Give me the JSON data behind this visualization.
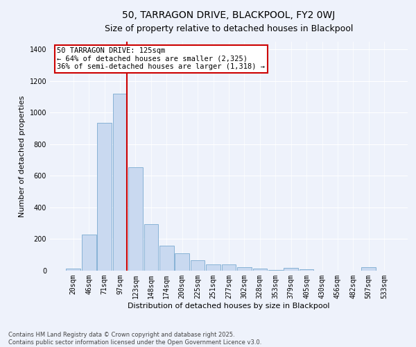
{
  "title": "50, TARRAGON DRIVE, BLACKPOOL, FY2 0WJ",
  "subtitle": "Size of property relative to detached houses in Blackpool",
  "xlabel": "Distribution of detached houses by size in Blackpool",
  "ylabel": "Number of detached properties",
  "categories": [
    "20sqm",
    "46sqm",
    "71sqm",
    "97sqm",
    "123sqm",
    "148sqm",
    "174sqm",
    "200sqm",
    "225sqm",
    "251sqm",
    "277sqm",
    "302sqm",
    "328sqm",
    "353sqm",
    "379sqm",
    "405sqm",
    "430sqm",
    "456sqm",
    "482sqm",
    "507sqm",
    "533sqm"
  ],
  "values": [
    15,
    230,
    935,
    1120,
    655,
    295,
    160,
    108,
    65,
    40,
    40,
    22,
    15,
    5,
    18,
    10,
    0,
    0,
    0,
    20,
    0
  ],
  "bar_color": "#c9d9f0",
  "bar_edge_color": "#7aaad0",
  "vline_color": "#cc0000",
  "annotation_text": "50 TARRAGON DRIVE: 125sqm\n← 64% of detached houses are smaller (2,325)\n36% of semi-detached houses are larger (1,318) →",
  "annotation_box_color": "#ffffff",
  "annotation_box_edge_color": "#cc0000",
  "footer": "Contains HM Land Registry data © Crown copyright and database right 2025.\nContains public sector information licensed under the Open Government Licence v3.0.",
  "ylim": [
    0,
    1450
  ],
  "background_color": "#eef2fb",
  "grid_color": "#ffffff",
  "title_fontsize": 10,
  "subtitle_fontsize": 9,
  "axis_label_fontsize": 8,
  "tick_fontsize": 7,
  "footer_fontsize": 6,
  "annotation_fontsize": 7.5
}
